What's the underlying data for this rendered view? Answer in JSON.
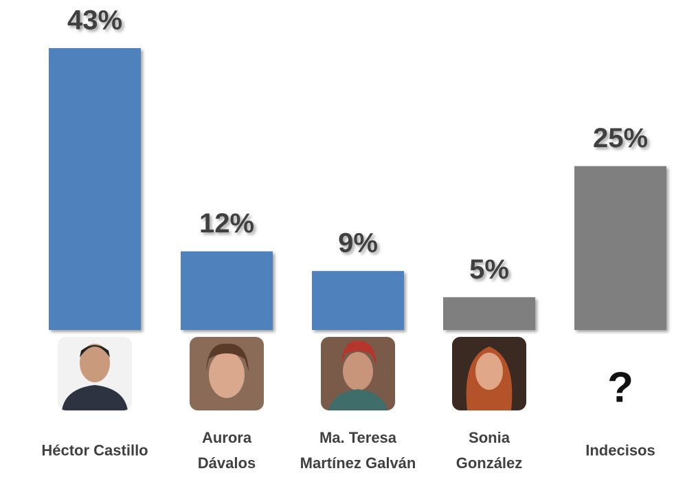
{
  "chart_data": {
    "type": "bar",
    "categories": [
      "Héctor Castillo",
      "Aurora Dávalos",
      "Ma. Teresa Martínez Galván",
      "Sonia González",
      "Indecisos"
    ],
    "values": [
      43,
      12,
      9,
      5,
      25
    ],
    "value_labels": [
      "43%",
      "12%",
      "9%",
      "5%",
      "25%"
    ],
    "colors": [
      "#4f81bd",
      "#4f81bd",
      "#4f81bd",
      "#7f7f7f",
      "#7f7f7f"
    ],
    "undecided_symbol": "?"
  }
}
